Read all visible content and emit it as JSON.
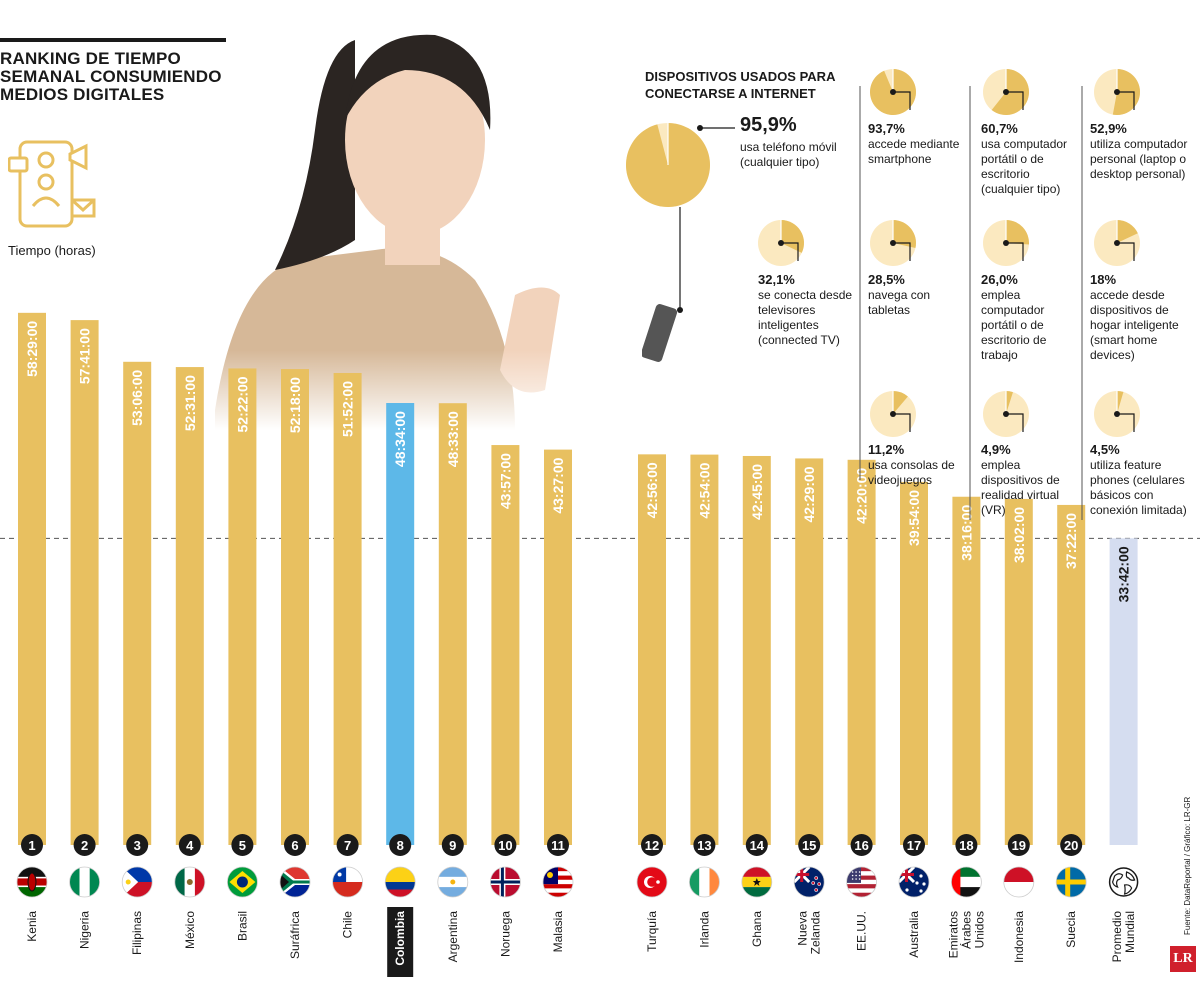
{
  "title": "RANKING DE TIEMPO SEMANAL CONSUMIENDO MEDIOS DIGITALES",
  "colors": {
    "bar": "#E8C060",
    "highlight": "#5DB8E8",
    "average": "#D5DDF0",
    "text_on_bar": "#ffffff",
    "pie_main": "#E8C060",
    "pie_light": "#FBE9C0"
  },
  "chart_data": [
    {
      "type": "bar",
      "title": "RANKING DE TIEMPO SEMANAL CONSUMIENDO MEDIOS DIGITALES",
      "ylabel": "Tiempo (horas)",
      "ylim": [
        0,
        60
      ],
      "grid": false,
      "reference_line": 33.7,
      "categories": [
        "Kenia",
        "Nigeria",
        "Filipinas",
        "México",
        "Brasil",
        "Suráfrica",
        "Chile",
        "Colombia",
        "Argentina",
        "Noruega",
        "Malasia",
        "Turquía",
        "Irlanda",
        "Ghana",
        "Nueva Zelanda",
        "EE.UU.",
        "Australia",
        "Emiratos Árabes Unidos",
        "Indonesia",
        "Suecia",
        "Promedio Mundial"
      ],
      "ranks": [
        "1",
        "2",
        "3",
        "4",
        "5",
        "6",
        "7",
        "8",
        "9",
        "10",
        "11",
        "12",
        "13",
        "14",
        "15",
        "16",
        "17",
        "18",
        "19",
        "20",
        ""
      ],
      "labels": [
        "58:29:00",
        "57:41:00",
        "53:06:00",
        "52:31:00",
        "52:22:00",
        "52:18:00",
        "51:52:00",
        "48:34:00",
        "48:33:00",
        "43:57:00",
        "43:27:00",
        "42:56:00",
        "42:54:00",
        "42:45:00",
        "42:29:00",
        "42:20:00",
        "39:54:00",
        "38:16:00",
        "38:02:00",
        "37:22:00",
        "33:42:00"
      ],
      "values": [
        58.48,
        57.68,
        53.1,
        52.52,
        52.37,
        52.3,
        51.87,
        48.57,
        48.55,
        43.95,
        43.45,
        42.93,
        42.9,
        42.75,
        42.48,
        42.33,
        39.9,
        38.27,
        38.03,
        37.37,
        33.7
      ],
      "flag_icons": [
        "kenya-flag-icon",
        "nigeria-flag-icon",
        "philippines-flag-icon",
        "mexico-flag-icon",
        "brazil-flag-icon",
        "south-africa-flag-icon",
        "chile-flag-icon",
        "colombia-flag-icon",
        "argentina-flag-icon",
        "norway-flag-icon",
        "malaysia-flag-icon",
        "turkey-flag-icon",
        "ireland-flag-icon",
        "ghana-flag-icon",
        "new-zealand-flag-icon",
        "usa-flag-icon",
        "australia-flag-icon",
        "uae-flag-icon",
        "indonesia-flag-icon",
        "sweden-flag-icon",
        "globe-icon"
      ],
      "highlight": "Colombia"
    },
    {
      "type": "pie",
      "title": "DISPOSITIVOS USADOS PARA CONECTARSE A INTERNET",
      "items": [
        {
          "pct_label": "95,9%",
          "value": 95.9,
          "desc": "usa teléfono móvil (cualquier tipo)"
        },
        {
          "pct_label": "93,7%",
          "value": 93.7,
          "desc": "accede mediante smartphone"
        },
        {
          "pct_label": "60,7%",
          "value": 60.7,
          "desc": "usa computador portátil o de escritorio (cualquier tipo)"
        },
        {
          "pct_label": "52,9%",
          "value": 52.9,
          "desc": "utiliza computador personal (laptop o desktop personal)"
        },
        {
          "pct_label": "32,1%",
          "value": 32.1,
          "desc": "se conecta desde televisores inteligentes (connected TV)"
        },
        {
          "pct_label": "28,5%",
          "value": 28.5,
          "desc": "navega con tabletas"
        },
        {
          "pct_label": "26,0%",
          "value": 26.0,
          "desc": "emplea computador portátil o de escritorio de trabajo"
        },
        {
          "pct_label": "18%",
          "value": 18,
          "desc": "accede desde dispositivos de hogar inteligente (smart home devices)"
        },
        {
          "pct_label": "11,2%",
          "value": 11.2,
          "desc": "usa consolas de videojuegos"
        },
        {
          "pct_label": "4,9%",
          "value": 4.9,
          "desc": "emplea dispositivos de realidad virtual (VR)"
        },
        {
          "pct_label": "4,5%",
          "value": 4.5,
          "desc": "utiliza feature phones (celulares básicos con conexión limitada)"
        }
      ]
    }
  ],
  "source": "Fuente: DataReportal / Gráfico: LR-GR",
  "logo": "LR"
}
